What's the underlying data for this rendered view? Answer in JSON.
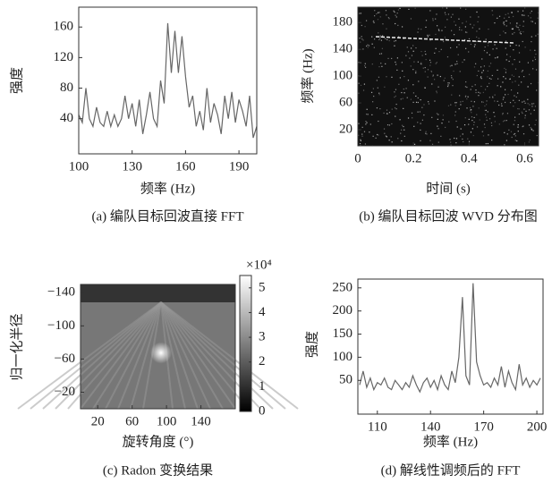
{
  "chart_data": [
    {
      "type": "line",
      "x_label": "频率 (Hz)",
      "y_label": "强度",
      "caption": "(a) 编队目标回波直接 FFT",
      "color": "#666666",
      "x": [
        100,
        102,
        104,
        106,
        108,
        110,
        112,
        114,
        116,
        118,
        120,
        122,
        124,
        126,
        128,
        130,
        132,
        134,
        136,
        138,
        140,
        142,
        144,
        146,
        148,
        150,
        152,
        154,
        156,
        158,
        160,
        162,
        164,
        166,
        168,
        170,
        172,
        174,
        176,
        178,
        180,
        182,
        184,
        186,
        188,
        190,
        192,
        194,
        196,
        198,
        200
      ],
      "values": [
        45,
        35,
        80,
        40,
        30,
        55,
        35,
        30,
        50,
        30,
        45,
        30,
        40,
        70,
        40,
        60,
        30,
        65,
        20,
        45,
        75,
        40,
        30,
        90,
        60,
        165,
        100,
        155,
        100,
        148,
        95,
        55,
        70,
        30,
        50,
        25,
        80,
        35,
        60,
        45,
        20,
        70,
        40,
        75,
        35,
        65,
        50,
        30,
        70,
        15,
        30
      ],
      "xlim": [
        100,
        200
      ],
      "xticks": [
        100,
        130,
        160,
        190
      ],
      "ylim": [
        -6,
        186
      ],
      "yticks": [
        40,
        80,
        120,
        160
      ]
    },
    {
      "type": "image",
      "x_label": "时间 (s)",
      "y_label": "频率 (Hz)",
      "caption": "(b) 编队目标回波 WVD 分布图",
      "xlim": [
        0,
        0.65
      ],
      "xticks": [
        0,
        0.2,
        0.4,
        0.6
      ],
      "ylim": [
        -4,
        203
      ],
      "yticks": [
        20,
        60,
        100,
        140,
        180
      ]
    },
    {
      "type": "heatmap",
      "x_label": "旋转角度 (°)",
      "y_label": "归一化半径",
      "caption": "(c) Radon 变换结果",
      "xlim": [
        0,
        180
      ],
      "xticks": [
        20,
        60,
        100,
        140
      ],
      "ylim": [
        -150,
        0
      ],
      "yticks": [
        {
          "value": -140,
          "label": "−140"
        },
        {
          "value": -100,
          "label": "−100"
        },
        {
          "value": -60,
          "label": "−60"
        },
        {
          "value": -20,
          "label": "−20"
        }
      ],
      "colorbar": {
        "label": "×10⁴",
        "ylim": [
          0,
          5.5
        ],
        "yticks": [
          0,
          1,
          2,
          3,
          4,
          5
        ]
      }
    },
    {
      "type": "line",
      "x_label": "频率 (Hz)",
      "y_label": "强度",
      "caption": "(d) 解线性调频后的 FFT",
      "color": "#666666",
      "x": [
        100,
        102,
        104,
        106,
        108,
        110,
        112,
        114,
        116,
        118,
        120,
        122,
        124,
        126,
        128,
        130,
        132,
        134,
        136,
        138,
        140,
        142,
        144,
        146,
        148,
        150,
        152,
        154,
        156,
        158,
        160,
        162,
        164,
        166,
        168,
        170,
        172,
        174,
        176,
        178,
        180,
        182,
        184,
        186,
        188,
        190,
        192,
        194,
        196,
        198,
        200,
        202
      ],
      "values": [
        40,
        70,
        35,
        55,
        30,
        45,
        40,
        55,
        35,
        30,
        50,
        40,
        30,
        45,
        35,
        60,
        40,
        25,
        45,
        55,
        35,
        50,
        30,
        60,
        40,
        30,
        70,
        45,
        100,
        230,
        60,
        40,
        260,
        90,
        60,
        40,
        45,
        35,
        55,
        40,
        80,
        35,
        70,
        45,
        30,
        85,
        40,
        55,
        35,
        50,
        40,
        55
      ],
      "xlim": [
        99,
        203.5
      ],
      "xticks": [
        110,
        140,
        170,
        200
      ],
      "ylim": [
        -23,
        269
      ],
      "yticks": [
        50,
        100,
        150,
        200,
        250
      ]
    }
  ]
}
